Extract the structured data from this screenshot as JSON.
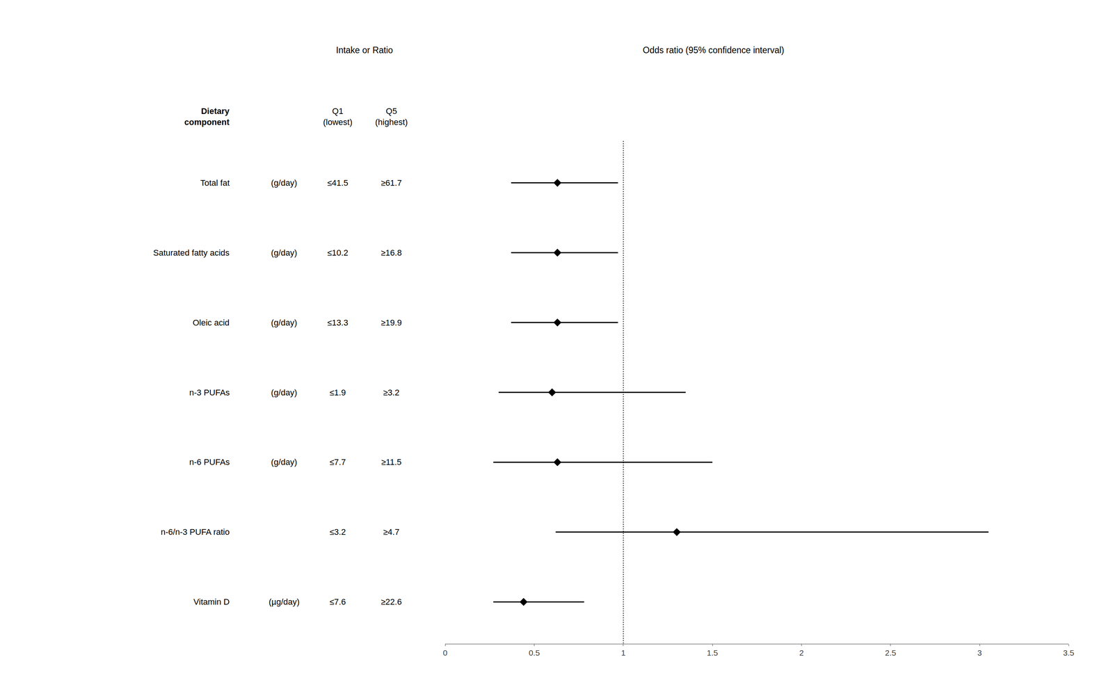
{
  "chart_data": {
    "type": "forest",
    "title": "Odds ratio (95% confidence interval)",
    "group_header": "Intake or Ratio",
    "label_header": "Dietary\ncomponent",
    "q1_header": "Q1\n(lowest)",
    "q5_header": "Q5\n(highest)",
    "categories": [
      "Total fat",
      "Saturated fatty acids",
      "Oleic acid",
      "n-3 PUFAs",
      "n-6 PUFAs",
      "n-6/n-3 PUFA ratio",
      "Vitamin D"
    ],
    "units": [
      "(g/day)",
      "(g/day)",
      "(g/day)",
      "(g/day)",
      "(g/day)",
      null,
      "(µg/day)"
    ],
    "q1": [
      "≤41.5",
      "≤10.2",
      "≤13.3",
      "≤1.9",
      "≤7.7",
      "≤3.2",
      "≤7.6"
    ],
    "q5": [
      "≥61.7",
      "≥16.8",
      "≥19.9",
      "≥3.2",
      "≥11.5",
      "≥4.7",
      "≥22.6"
    ],
    "values": [
      0.63,
      0.63,
      0.63,
      0.6,
      0.63,
      1.3,
      0.44
    ],
    "ci_low": [
      0.37,
      0.37,
      0.37,
      0.3,
      0.27,
      0.62,
      0.27
    ],
    "ci_high": [
      0.97,
      0.97,
      0.97,
      1.35,
      1.5,
      3.05,
      0.78
    ],
    "reference_x": 1.0,
    "xlim": [
      0,
      3.5
    ],
    "xticks": [
      0,
      0.5,
      1,
      1.5,
      2,
      2.5,
      3,
      3.5
    ],
    "color": "#000000",
    "marker": "diamond",
    "grid": false
  }
}
